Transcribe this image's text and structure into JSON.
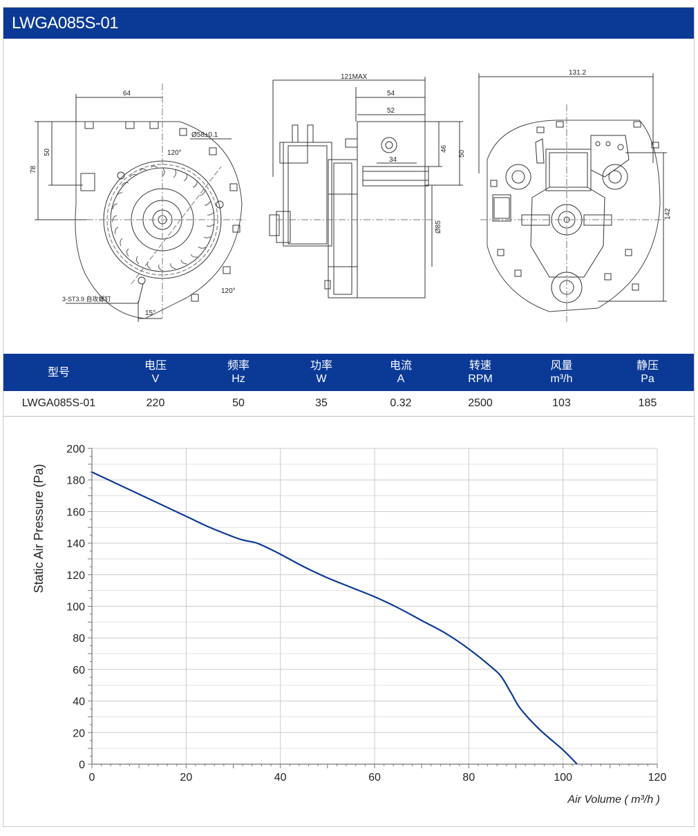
{
  "header": {
    "title": "LWGA085S-01"
  },
  "drawings": {
    "front": {
      "dim_width": "64",
      "dim_h50": "50",
      "dim_h78": "78",
      "dia": "Ø58±0.1",
      "angle_top": "120°",
      "angle_bottom": "120°",
      "angle_15": "15°",
      "screw": "3-ST3.9 自攻螺钉"
    },
    "side": {
      "dim_max": "121MAX",
      "dim_54": "54",
      "dim_52": "52",
      "dim_34": "34",
      "dim_46": "46",
      "dim_50": "50",
      "dim_phi85": "Ø85"
    },
    "back": {
      "dim_131": "131.2",
      "dim_142": "142"
    }
  },
  "specs": {
    "headers": [
      {
        "name": "型号",
        "unit": ""
      },
      {
        "name": "电压",
        "unit": "V"
      },
      {
        "name": "频率",
        "unit": "Hz"
      },
      {
        "name": "功率",
        "unit": "W"
      },
      {
        "name": "电流",
        "unit": "A"
      },
      {
        "name": "转速",
        "unit": "RPM"
      },
      {
        "name": "风量",
        "unit": "m³/h"
      },
      {
        "name": "静压",
        "unit": "Pa"
      }
    ],
    "row": [
      "LWGA085S-01",
      "220",
      "50",
      "35",
      "0.32",
      "2500",
      "103",
      "185"
    ]
  },
  "chart_data": {
    "type": "line",
    "title": "",
    "xlabel": "Air Volume ( m³/h )",
    "ylabel": "Static Air Pressure  (Pa)",
    "xlim": [
      0,
      120
    ],
    "ylim": [
      0,
      200
    ],
    "xticks": [
      0,
      20,
      40,
      60,
      80,
      100,
      120
    ],
    "yticks": [
      0,
      20,
      40,
      60,
      80,
      100,
      120,
      140,
      160,
      180,
      200
    ],
    "grid": true,
    "series": [
      {
        "color": "#0b3a96",
        "x": [
          0,
          5,
          10,
          15,
          20,
          25,
          30,
          32,
          35,
          38,
          40,
          45,
          50,
          55,
          60,
          65,
          70,
          75,
          80,
          85,
          87,
          89,
          91,
          95,
          100,
          103
        ],
        "y": [
          185,
          178,
          171,
          164,
          157,
          150,
          144,
          142,
          140,
          136,
          133,
          125,
          118,
          112,
          106,
          99,
          91,
          83,
          73,
          61,
          55,
          45,
          35,
          22,
          9,
          0
        ]
      }
    ]
  },
  "colors": {
    "brand": "#0b3a96",
    "curve": "#0b3a96",
    "grid": "#cfcfcf"
  }
}
